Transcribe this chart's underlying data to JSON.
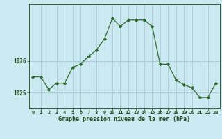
{
  "hours": [
    0,
    1,
    2,
    3,
    4,
    5,
    6,
    7,
    8,
    9,
    10,
    11,
    12,
    13,
    14,
    15,
    16,
    17,
    18,
    19,
    20,
    21,
    22,
    23
  ],
  "pressure": [
    1025.5,
    1025.5,
    1025.1,
    1025.3,
    1025.3,
    1025.8,
    1025.9,
    1026.15,
    1026.35,
    1026.7,
    1027.35,
    1027.1,
    1027.3,
    1027.3,
    1027.3,
    1027.1,
    1025.9,
    1025.9,
    1025.4,
    1025.25,
    1025.15,
    1024.85,
    1024.85,
    1025.3
  ],
  "line_color": "#2d6a2d",
  "marker_color": "#2d6a2d",
  "bg_color": "#cce8f0",
  "grid_color": "#a8cdd8",
  "xlabel": "Graphe pression niveau de la mer (hPa)",
  "xlabel_color": "#1a4a1a",
  "tick_color": "#1a4a1a",
  "ylim": [
    1024.5,
    1027.8
  ],
  "yticks": [
    1025,
    1026
  ],
  "xlim": [
    -0.5,
    23.5
  ],
  "figsize": [
    3.2,
    2.0
  ],
  "dpi": 100
}
